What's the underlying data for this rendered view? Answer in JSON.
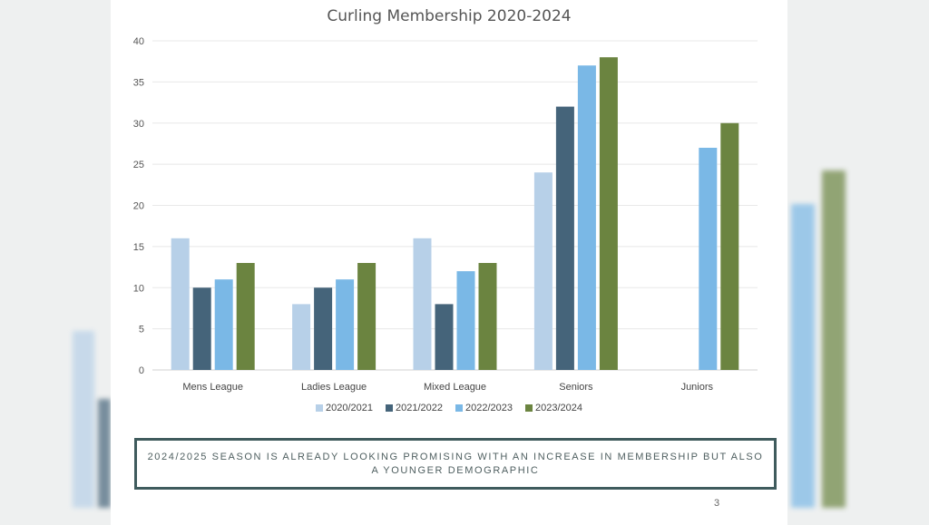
{
  "chart_data": {
    "type": "bar",
    "title": "Curling Membership 2020-2024",
    "categories": [
      "Mens League",
      "Ladies League",
      "Mixed League",
      "Seniors",
      "Juniors"
    ],
    "series": [
      {
        "name": "2020/2021",
        "color": "#b7d0e8",
        "values": [
          16,
          8,
          16,
          24,
          0
        ]
      },
      {
        "name": "2021/2022",
        "color": "#45647a",
        "values": [
          10,
          10,
          8,
          32,
          0
        ]
      },
      {
        "name": "2022/2023",
        "color": "#7ab8e6",
        "values": [
          11,
          11,
          12,
          37,
          27
        ]
      },
      {
        "name": "2023/2024",
        "color": "#6b8440",
        "values": [
          13,
          13,
          13,
          38,
          30
        ]
      }
    ],
    "yticks": [
      "0",
      "5",
      "10",
      "15",
      "20",
      "25",
      "30",
      "35",
      "40"
    ],
    "ylim": [
      0,
      40
    ],
    "xlabel": "",
    "ylabel": "",
    "grid": true,
    "legend": "bottom"
  },
  "note": "2024/2025 SEASON IS ALREADY LOOKING PROMISING WITH AN INCREASE IN MEMBERSHIP BUT ALSO A YOUNGER DEMOGRAPHIC",
  "page_number": "3"
}
